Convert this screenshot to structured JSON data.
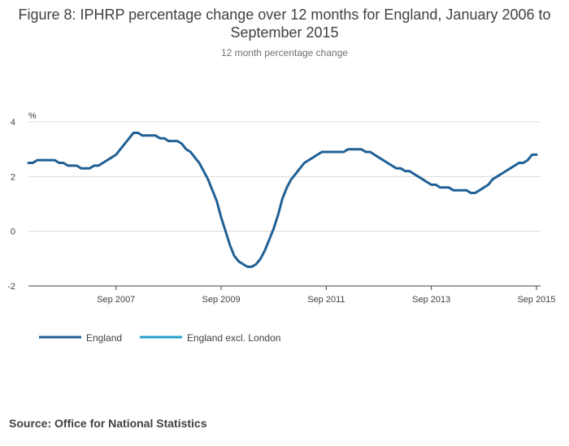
{
  "title": "Figure 8: IPHRP percentage change over 12 months for England, January 2006 to September 2015",
  "subtitle": "12 month percentage change",
  "source": {
    "label": "Source:",
    "value": "Office for National Statistics"
  },
  "colors": {
    "england": "#206095",
    "england_excl_london": "#27a0cc",
    "grid": "#d9d9d9",
    "axis": "#414042"
  },
  "chart_data": {
    "type": "line",
    "title": "Figure 8: IPHRP percentage change over 12 months for England, January 2006 to September 2015",
    "subtitle": "12 month percentage change",
    "xlabel": "",
    "ylabel": "%",
    "ylim": [
      -2,
      4
    ],
    "yticks": [
      4,
      2,
      0,
      -2
    ],
    "xrange_index": [
      0,
      116
    ],
    "xticks": [
      {
        "index": 20,
        "label": "Sep 2007"
      },
      {
        "index": 44,
        "label": "Sep 2009"
      },
      {
        "index": 68,
        "label": "Sep 2011"
      },
      {
        "index": 92,
        "label": "Sep 2013"
      },
      {
        "index": 116,
        "label": "Sep 2015"
      }
    ],
    "legend": "bottom-left",
    "series": [
      {
        "name": "England",
        "values": [
          2.5,
          2.5,
          2.6,
          2.6,
          2.6,
          2.6,
          2.6,
          2.5,
          2.5,
          2.4,
          2.4,
          2.4,
          2.3,
          2.3,
          2.3,
          2.4,
          2.4,
          2.5,
          2.6,
          2.7,
          2.8,
          3.0,
          3.2,
          3.4,
          3.6,
          3.6,
          3.5,
          3.5,
          3.5,
          3.5,
          3.4,
          3.4,
          3.3,
          3.3,
          3.3,
          3.2,
          3.0,
          2.9,
          2.7,
          2.5,
          2.2,
          1.9,
          1.5,
          1.1,
          0.5,
          0.0,
          -0.5,
          -0.9,
          -1.1,
          -1.2,
          -1.3,
          -1.3,
          -1.2,
          -1.0,
          -0.7,
          -0.3,
          0.1,
          0.6,
          1.2,
          1.6,
          1.9,
          2.1,
          2.3,
          2.5,
          2.6,
          2.7,
          2.8,
          2.9,
          2.9,
          2.9,
          2.9,
          2.9,
          2.9,
          3.0,
          3.0,
          3.0,
          3.0,
          2.9,
          2.9,
          2.8,
          2.7,
          2.6,
          2.5,
          2.4,
          2.3,
          2.3,
          2.2,
          2.2,
          2.1,
          2.0,
          1.9,
          1.8,
          1.7,
          1.7,
          1.6,
          1.6,
          1.6,
          1.5,
          1.5,
          1.5,
          1.5,
          1.4,
          1.4,
          1.5,
          1.6,
          1.7,
          1.9,
          2.0,
          2.1,
          2.2,
          2.3,
          2.4,
          2.5,
          2.5,
          2.6,
          2.8,
          2.8
        ]
      },
      {
        "name": "England excl. London",
        "values": []
      }
    ]
  }
}
